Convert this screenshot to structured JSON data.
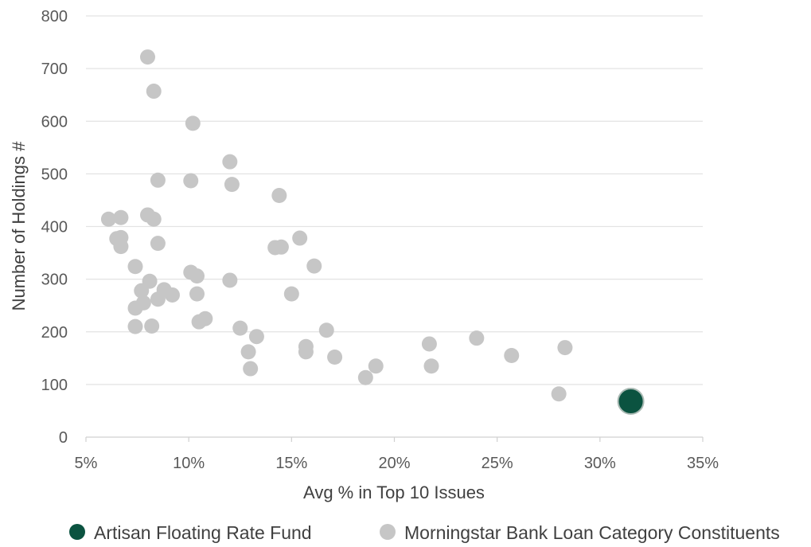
{
  "chart_data": {
    "type": "scatter",
    "title": "",
    "xlabel": "Avg % in Top 10 Issues",
    "ylabel": "Number of Holdings #",
    "xlim": [
      5,
      35
    ],
    "ylim": [
      0,
      800
    ],
    "xticks": [
      5,
      10,
      15,
      20,
      25,
      30,
      35
    ],
    "xtick_labels": [
      "5%",
      "10%",
      "15%",
      "20%",
      "25%",
      "30%",
      "35%"
    ],
    "yticks": [
      0,
      100,
      200,
      300,
      400,
      500,
      600,
      700,
      800
    ],
    "ytick_labels": [
      "0",
      "100",
      "200",
      "300",
      "400",
      "500",
      "600",
      "700",
      "800"
    ],
    "grid": "horizontal",
    "legend_position": "bottom",
    "series": [
      {
        "name": "Artisan Floating Rate Fund",
        "color": "#0b5340",
        "points": [
          [
            31.5,
            68
          ]
        ]
      },
      {
        "name": "Morningstar Bank Loan Category Constituents",
        "color": "#c6c6c6",
        "points": [
          [
            8.0,
            722
          ],
          [
            8.3,
            657
          ],
          [
            10.2,
            596
          ],
          [
            12.0,
            523
          ],
          [
            12.1,
            480
          ],
          [
            8.5,
            488
          ],
          [
            10.1,
            487
          ],
          [
            14.4,
            459
          ],
          [
            6.1,
            414
          ],
          [
            6.7,
            417
          ],
          [
            8.0,
            422
          ],
          [
            8.3,
            414
          ],
          [
            6.5,
            377
          ],
          [
            6.7,
            379
          ],
          [
            15.4,
            378
          ],
          [
            8.5,
            368
          ],
          [
            6.7,
            362
          ],
          [
            14.2,
            360
          ],
          [
            14.5,
            361
          ],
          [
            7.4,
            324
          ],
          [
            16.1,
            325
          ],
          [
            10.1,
            313
          ],
          [
            10.4,
            306
          ],
          [
            12.0,
            298
          ],
          [
            8.1,
            296
          ],
          [
            8.8,
            280
          ],
          [
            7.7,
            278
          ],
          [
            10.4,
            272
          ],
          [
            9.2,
            270
          ],
          [
            15.0,
            272
          ],
          [
            8.5,
            262
          ],
          [
            7.8,
            255
          ],
          [
            7.4,
            245
          ],
          [
            10.8,
            225
          ],
          [
            10.5,
            219
          ],
          [
            7.4,
            210
          ],
          [
            8.2,
            211
          ],
          [
            12.5,
            207
          ],
          [
            16.7,
            203
          ],
          [
            13.3,
            191
          ],
          [
            24.0,
            188
          ],
          [
            21.7,
            177
          ],
          [
            15.7,
            172
          ],
          [
            28.3,
            170
          ],
          [
            12.9,
            162
          ],
          [
            15.7,
            162
          ],
          [
            25.7,
            155
          ],
          [
            17.1,
            152
          ],
          [
            19.1,
            135
          ],
          [
            21.8,
            135
          ],
          [
            13.0,
            130
          ],
          [
            18.6,
            113
          ],
          [
            28.0,
            82
          ]
        ]
      }
    ]
  }
}
